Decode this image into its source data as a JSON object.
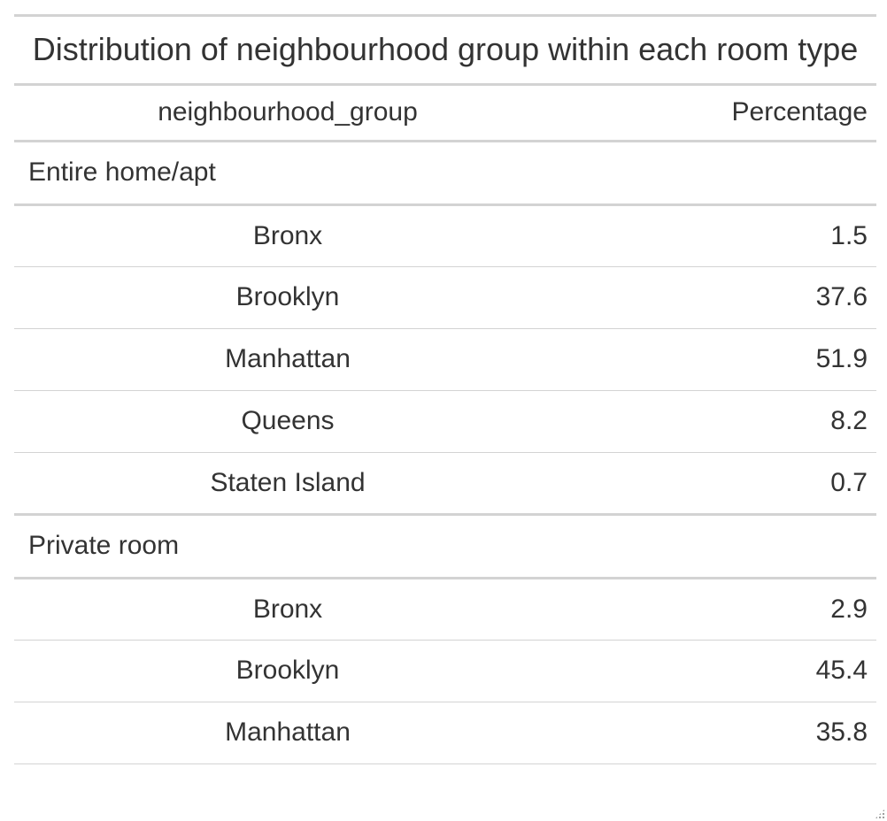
{
  "title": "Distribution of neighbourhood group within each room type",
  "columns": {
    "name": "neighbourhood_group",
    "pct": "Percentage"
  },
  "groups": [
    {
      "label": "Entire home/apt",
      "rows": [
        {
          "name": "Bronx",
          "value": "1.5"
        },
        {
          "name": "Brooklyn",
          "value": "37.6"
        },
        {
          "name": "Manhattan",
          "value": "51.9"
        },
        {
          "name": "Queens",
          "value": "8.2"
        },
        {
          "name": "Staten Island",
          "value": "0.7"
        }
      ]
    },
    {
      "label": "Private room",
      "rows": [
        {
          "name": "Bronx",
          "value": "2.9"
        },
        {
          "name": "Brooklyn",
          "value": "45.4"
        },
        {
          "name": "Manhattan",
          "value": "35.8"
        }
      ]
    }
  ]
}
